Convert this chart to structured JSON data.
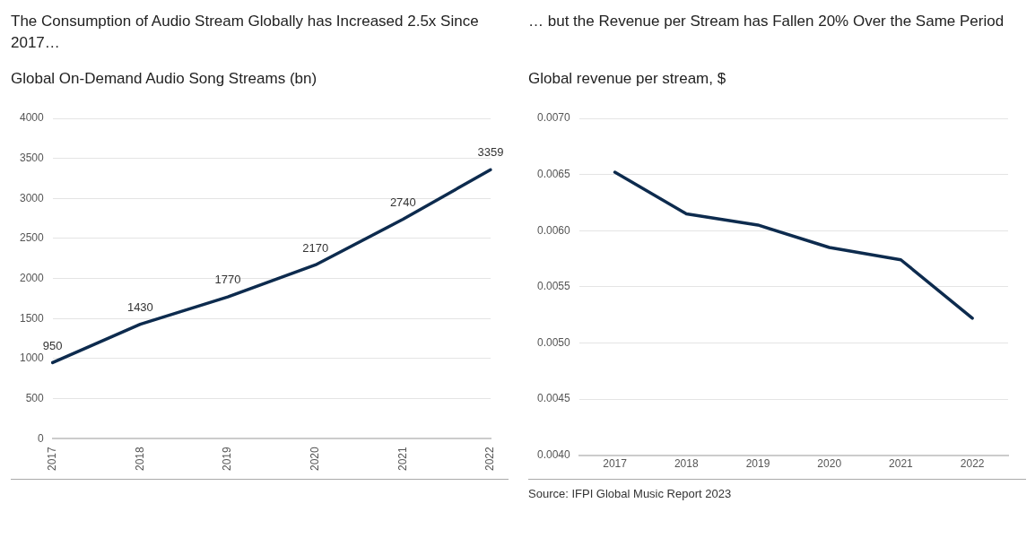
{
  "chart_data": [
    {
      "type": "line",
      "title": "The Consumption of Audio Stream Globally has Increased 2.5x Since 2017…",
      "subtitle": "Global On-Demand Audio Song Streams (bn)",
      "categories": [
        "2017",
        "2018",
        "2019",
        "2020",
        "2021",
        "2022"
      ],
      "series": [
        {
          "color": "#0d2b4e",
          "values": [
            950,
            1430,
            1770,
            2170,
            2740,
            3359
          ]
        }
      ],
      "ylim": [
        0,
        4000
      ],
      "yticks": [
        0,
        500,
        1000,
        1500,
        2000,
        2500,
        3000,
        3500,
        4000
      ],
      "grid": "y",
      "legend": false,
      "marker": "none",
      "data_labels": true
    },
    {
      "type": "line",
      "title": "… but the Revenue per Stream has Fallen 20% Over the Same Period",
      "subtitle": "Global revenue per stream, $",
      "categories": [
        "2017",
        "2018",
        "2019",
        "2020",
        "2021",
        "2022"
      ],
      "series": [
        {
          "color": "#0d2b4e",
          "values": [
            0.00652,
            0.00615,
            0.00605,
            0.00585,
            0.00574,
            0.00522
          ]
        }
      ],
      "ylim": [
        0.004,
        0.007
      ],
      "yticks": [
        {
          "value": 0.004,
          "label": "0.0040"
        },
        {
          "value": 0.0045,
          "label": "0.0045"
        },
        {
          "value": 0.005,
          "label": "0.0050"
        },
        {
          "value": 0.0055,
          "label": "0.0055"
        },
        {
          "value": 0.006,
          "label": "0.0060"
        },
        {
          "value": 0.0065,
          "label": "0.0065"
        },
        {
          "value": 0.007,
          "label": "0.0070"
        }
      ],
      "grid": "y",
      "legend": false,
      "marker": "none",
      "annotations": [
        "Source: IFPI Global Music Report 2023"
      ]
    }
  ]
}
